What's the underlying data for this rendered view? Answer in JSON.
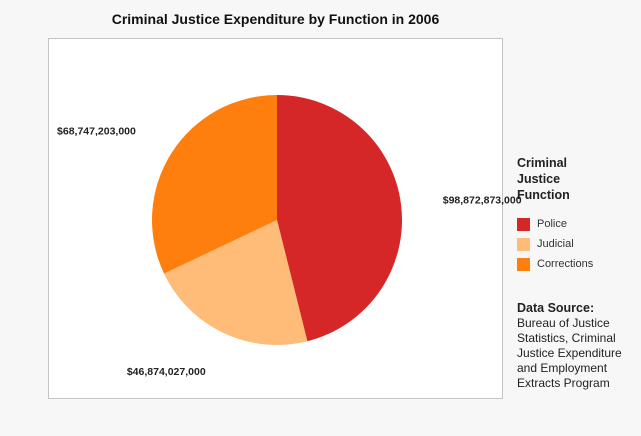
{
  "chart_data": {
    "type": "pie",
    "title": "Criminal Justice Expenditure by Function in 2006",
    "categories": [
      "Police",
      "Judicial",
      "Corrections"
    ],
    "values": [
      98872873000,
      46874027000,
      68747203000
    ],
    "value_labels": [
      "$98,872,873,000",
      "$46,874,027,000",
      "$68,747,203,000"
    ],
    "colors": [
      "#d62728",
      "#ffbb78",
      "#ff7f0e"
    ],
    "start_angle_deg": 0,
    "direction": "clockwise",
    "legend": {
      "title": "Criminal Justice Function",
      "placement": "right"
    }
  },
  "source": {
    "title": "Data Source:",
    "text": "Bureau of Justice Statistics, Criminal Justice Expenditure and Employment Extracts Program"
  }
}
